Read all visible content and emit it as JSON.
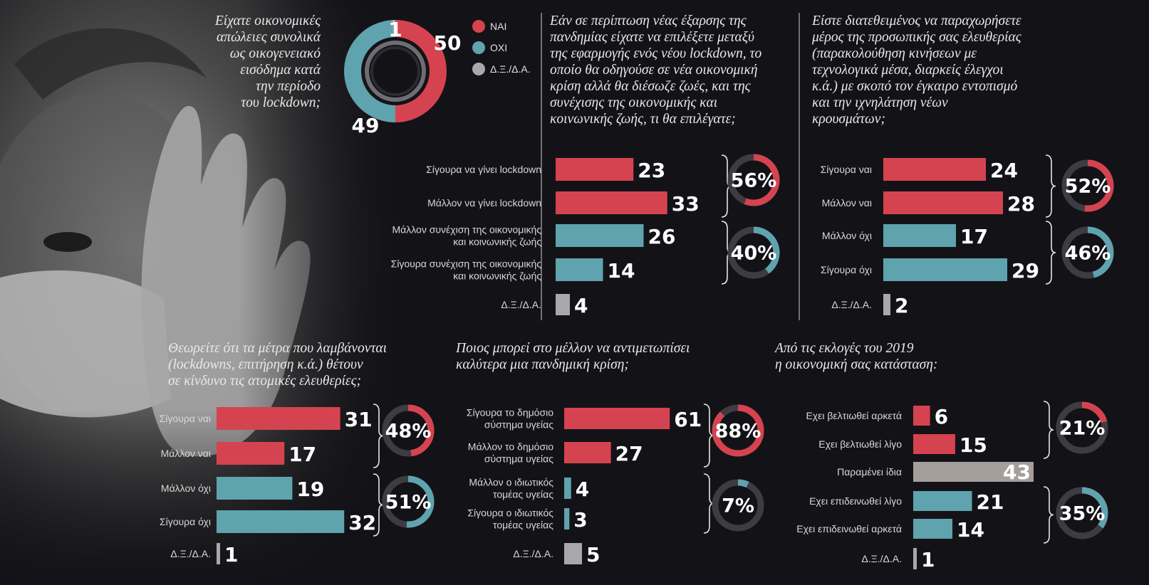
{
  "colors": {
    "yes": "#d64350",
    "no": "#5fa3ae",
    "dk": "#a8a7ac",
    "same": "#a59e9b",
    "ring_bg": "#3c3c42"
  },
  "chart_data": [
    {
      "id": "losses",
      "type": "pie",
      "title": "Είχατε οικονομικές απώλειες συνολικά ως οικογενειακό εισόδημα κατά την περίοδο του lockdown;",
      "title_lines": [
        "Είχατε οικονομικές",
        "απώλειες συνολικά",
        "ως οικογενειακό",
        "εισόδημα κατά",
        "την περίοδο",
        "του lockdown;"
      ],
      "slices": [
        {
          "label": "ΝΑΙ",
          "value": 50,
          "color": "#d64350"
        },
        {
          "label": "ΟΧΙ",
          "value": 49,
          "color": "#5fa3ae"
        },
        {
          "label": "Δ.Ξ./Δ.Α.",
          "value": 1,
          "color": "#a8a7ac"
        }
      ]
    },
    {
      "id": "lockdown",
      "type": "bar",
      "title": "Εάν σε περίπτωση νέας έξαρσης της πανδημίας είχατε να επιλέξετε μεταξύ της εφαρμογής ενός νέου lockdown, το οποίο θα οδηγούσε σε νέα οικονομική κρίση αλλά θα διέσωζε ζωές, και της συνέχισης της οικονομικής και κοινωνικής ζωής, τι θα επιλέγατε;",
      "title_lines": [
        "Εάν σε περίπτωση νέας έξαρσης της",
        "πανδημίας είχατε να επιλέξετε μεταξύ",
        "της εφαρμογής ενός νέου lockdown, το",
        "οποίο θα οδηγούσε σε νέα οικονομική",
        "κρίση αλλά θα διέσωζε ζωές, και της",
        "συνέχισης της οικονομικής και",
        "κοινωνικής ζωής, τι θα επιλέγατε;"
      ],
      "categories": [
        "Σίγουρα να γίνει lockdown",
        "Μάλλον να γίνει lockdown",
        "Μάλλον συνέχιση της οικονομικής και κοινωνικής ζωής",
        "Σίγουρα συνέχιση της οικονομικής και κοινωνικής ζωής",
        "Δ.Ξ./Δ.Α."
      ],
      "category_lines": [
        [
          "Σίγουρα να γίνει lockdown"
        ],
        [
          "Μάλλον να γίνει lockdown"
        ],
        [
          "Μάλλον συνέχιση της οικονομικής",
          "και κοινωνικής ζωής"
        ],
        [
          "Σίγουρα συνέχιση της οικονομικής",
          "και κοινωνικής ζωής"
        ],
        [
          "Δ.Ξ./Δ.Α."
        ]
      ],
      "values": [
        23,
        33,
        26,
        14,
        4
      ],
      "groups": [
        "yes",
        "yes",
        "no",
        "no",
        "dk"
      ],
      "totals": [
        {
          "group": "yes",
          "value": 56,
          "label": "56%"
        },
        {
          "group": "no",
          "value": 40,
          "label": "40%"
        }
      ]
    },
    {
      "id": "freedom-tracking",
      "type": "bar",
      "title": "Είστε διατεθειμένος να παραχωρήσετε μέρος της προσωπικής σας ελευθερίας (παρακολούθηση κινήσεων με τεχνολογικά μέσα, διαρκείς έλεγχοι κ.ά.) με σκοπό τον έγκαιρο εντοπισμό και την ιχνηλάτηση νέων κρουσμάτων;",
      "title_lines": [
        "Είστε διατεθειμένος να παραχωρήσετε",
        "μέρος της προσωπικής σας ελευθερίας",
        "(παρακολούθηση κινήσεων με",
        "τεχνολογικά μέσα, διαρκείς έλεγχοι",
        "κ.ά.) με σκοπό τον έγκαιρο εντοπισμό",
        "και την ιχνηλάτηση νέων",
        "κρουσμάτων;"
      ],
      "categories": [
        "Σίγουρα ναι",
        "Μάλλον ναι",
        "Μάλλον όχι",
        "Σίγουρα όχι",
        "Δ.Ξ./Δ.Α."
      ],
      "category_lines": [
        [
          "Σίγουρα ναι"
        ],
        [
          "Μάλλον ναι"
        ],
        [
          "Μάλλον όχι"
        ],
        [
          "Σίγουρα όχι"
        ],
        [
          "Δ.Ξ./Δ.Α."
        ]
      ],
      "values": [
        24,
        28,
        17,
        29,
        2
      ],
      "groups": [
        "yes",
        "yes",
        "no",
        "no",
        "dk"
      ],
      "totals": [
        {
          "group": "yes",
          "value": 52,
          "label": "52%"
        },
        {
          "group": "no",
          "value": 46,
          "label": "46%"
        }
      ]
    },
    {
      "id": "measures-freedoms",
      "type": "bar",
      "title": "Θεωρείτε ότι τα μέτρα που λαμβάνονται (lockdowns, επιτήρηση κ.ά.) θέτουν σε κίνδυνο τις ατομικές ελευθερίες;",
      "title_lines": [
        "Θεωρείτε ότι τα μέτρα που λαμβάνονται",
        "(lockdowns, επιτήρηση κ.ά.) θέτουν",
        "σε κίνδυνο τις ατομικές ελευθερίες;"
      ],
      "categories": [
        "Σίγουρα ναι",
        "Μάλλον ναι",
        "Μάλλον όχι",
        "Σίγουρα όχι",
        "Δ.Ξ./Δ.Α."
      ],
      "category_lines": [
        [
          "Σίγουρα ναι"
        ],
        [
          "Μάλλον ναι"
        ],
        [
          "Μάλλον όχι"
        ],
        [
          "Σίγουρα όχι"
        ],
        [
          "Δ.Ξ./Δ.Α."
        ]
      ],
      "values": [
        31,
        17,
        19,
        32,
        1
      ],
      "groups": [
        "yes",
        "yes",
        "no",
        "no",
        "dk"
      ],
      "totals": [
        {
          "group": "yes",
          "value": 48,
          "label": "48%"
        },
        {
          "group": "no",
          "value": 51,
          "label": "51%"
        }
      ]
    },
    {
      "id": "health-system",
      "type": "bar",
      "title": "Ποιος μπορεί στο μέλλον να αντιμετωπίσει καλύτερα μια πανδημική κρίση;",
      "title_lines": [
        "Ποιος μπορεί στο μέλλον να αντιμετωπίσει",
        "καλύτερα μια πανδημική κρίση;"
      ],
      "categories": [
        "Σίγουρα το δημόσιο σύστημα υγείας",
        "Μάλλον το δημόσιο σύστημα υγείας",
        "Μάλλον ο ιδιωτικός τομέας υγείας",
        "Σίγουρα ο ιδιωτικός τομέας υγείας",
        "Δ.Ξ./Δ.Α."
      ],
      "category_lines": [
        [
          "Σίγουρα το δημόσιο",
          "σύστημα υγείας"
        ],
        [
          "Μάλλον το δημόσιο",
          "σύστημα υγείας"
        ],
        [
          "Μάλλον ο ιδιωτικός",
          "τομέας υγείας"
        ],
        [
          "Σίγουρα ο ιδιωτικός",
          "τομέας υγείας"
        ],
        [
          "Δ.Ξ./Δ.Α."
        ]
      ],
      "values": [
        61,
        27,
        4,
        3,
        5
      ],
      "groups": [
        "yes",
        "yes",
        "no",
        "no",
        "dk"
      ],
      "totals": [
        {
          "group": "yes",
          "value": 88,
          "label": "88%"
        },
        {
          "group": "no",
          "value": 7,
          "label": "7%"
        }
      ]
    },
    {
      "id": "economic-situation",
      "type": "bar",
      "title": "Από τις εκλογές του 2019 η οικονομική σας κατάσταση:",
      "title_lines": [
        "Από τις εκλογές του 2019",
        "η οικονομική σας κατάσταση:"
      ],
      "categories": [
        "Εχει βελτιωθεί αρκετά",
        "Εχει βελτιωθεί λίγο",
        "Παραμένει ίδια",
        "Εχει επιδεινωθεί λίγο",
        "Εχει επιδεινωθεί αρκετά",
        "Δ.Ξ./Δ.Α."
      ],
      "category_lines": [
        [
          "Εχει βελτιωθεί αρκετά"
        ],
        [
          "Εχει βελτιωθεί λίγο"
        ],
        [
          "Παραμένει ίδια"
        ],
        [
          "Εχει επιδεινωθεί λίγο"
        ],
        [
          "Εχει επιδεινωθεί αρκετά"
        ],
        [
          "Δ.Ξ./Δ.Α."
        ]
      ],
      "values": [
        6,
        15,
        43,
        21,
        14,
        1
      ],
      "groups": [
        "yes",
        "yes",
        "same",
        "no",
        "no",
        "dk"
      ],
      "totals": [
        {
          "group": "yes",
          "value": 21,
          "label": "21%"
        },
        {
          "group": "no",
          "value": 35,
          "label": "35%"
        }
      ]
    }
  ]
}
